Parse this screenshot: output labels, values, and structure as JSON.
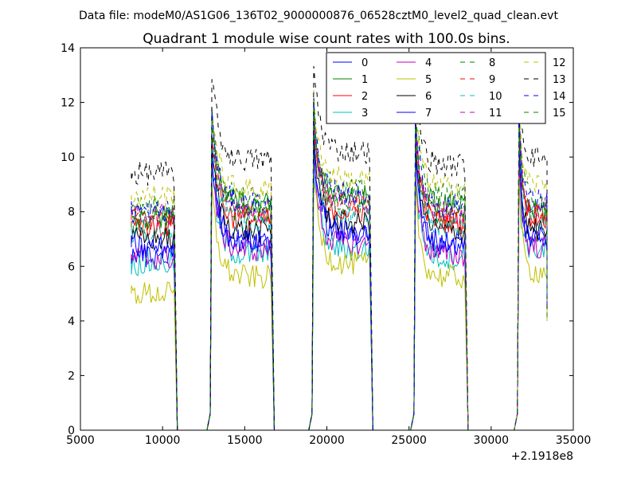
{
  "header": {
    "data_file_label": "Data file: modeM0/AS1G06_136T02_9000000876_06528cztM0_level2_quad_clean.evt"
  },
  "chart_data": {
    "type": "line",
    "title": "Quadrant 1 module wise count rates with 100.0s bins.",
    "xlabel": "",
    "ylabel": "",
    "xlim": [
      5000,
      35000
    ],
    "ylim": [
      0,
      14
    ],
    "x_ticks": [
      5000,
      10000,
      15000,
      20000,
      25000,
      30000,
      35000
    ],
    "x_tick_labels": [
      "5000",
      "10000",
      "15000",
      "20000",
      "25000",
      "30000",
      "35000"
    ],
    "y_ticks": [
      0,
      2,
      4,
      6,
      8,
      10,
      12,
      14
    ],
    "y_tick_labels": [
      "0",
      "2",
      "4",
      "6",
      "8",
      "10",
      "12",
      "14"
    ],
    "x_offset_label": "+2.1918e8",
    "grid": false,
    "legend_position": "top-right",
    "legend_columns": 4,
    "segments": [
      {
        "start": 8100,
        "end": 10700
      },
      {
        "start": 13000,
        "end": 16600
      },
      {
        "start": 19200,
        "end": 22600
      },
      {
        "start": 25400,
        "end": 28400
      },
      {
        "start": 31700,
        "end": 33400
      }
    ],
    "series": [
      {
        "name": "0",
        "color": "#0000ff",
        "dash": "solid",
        "segment_levels": [
          6.4,
          6.9,
          7.3,
          6.7,
          7.1
        ]
      },
      {
        "name": "1",
        "color": "#008000",
        "dash": "solid",
        "segment_levels": [
          7.8,
          8.3,
          8.5,
          8.2,
          8.0
        ]
      },
      {
        "name": "2",
        "color": "#ff0000",
        "dash": "solid",
        "segment_levels": [
          7.5,
          7.7,
          8.0,
          7.6,
          7.8
        ]
      },
      {
        "name": "3",
        "color": "#00bfbf",
        "dash": "solid",
        "segment_levels": [
          6.1,
          6.4,
          6.6,
          6.3,
          6.6
        ]
      },
      {
        "name": "4",
        "color": "#bf00bf",
        "dash": "solid",
        "segment_levels": [
          6.3,
          6.6,
          6.8,
          6.4,
          6.7
        ]
      },
      {
        "name": "5",
        "color": "#bfbf00",
        "dash": "solid",
        "segment_levels": [
          5.0,
          5.6,
          6.1,
          5.6,
          5.8
        ]
      },
      {
        "name": "6",
        "color": "#000000",
        "dash": "solid",
        "segment_levels": [
          7.0,
          7.3,
          7.6,
          7.3,
          7.3
        ]
      },
      {
        "name": "7",
        "color": "#0000ff",
        "dash": "solid",
        "segment_levels": [
          6.7,
          6.9,
          7.2,
          6.9,
          7.0
        ]
      },
      {
        "name": "8",
        "color": "#008000",
        "dash": "dashed",
        "segment_levels": [
          8.2,
          8.5,
          8.8,
          8.6,
          8.5
        ]
      },
      {
        "name": "9",
        "color": "#ff0000",
        "dash": "dashed",
        "segment_levels": [
          7.7,
          7.9,
          8.2,
          7.8,
          8.0
        ]
      },
      {
        "name": "10",
        "color": "#00bfbf",
        "dash": "dashed",
        "segment_levels": [
          7.3,
          7.6,
          7.9,
          7.5,
          7.7
        ]
      },
      {
        "name": "11",
        "color": "#bf00bf",
        "dash": "dashed",
        "segment_levels": [
          7.9,
          8.1,
          8.4,
          8.0,
          8.2
        ]
      },
      {
        "name": "12",
        "color": "#bfbf00",
        "dash": "dashed",
        "segment_levels": [
          8.6,
          8.8,
          9.2,
          8.9,
          9.0
        ]
      },
      {
        "name": "13",
        "color": "#000000",
        "dash": "dashed",
        "segment_levels": [
          9.4,
          9.9,
          10.2,
          9.7,
          10.0
        ]
      },
      {
        "name": "14",
        "color": "#0000ff",
        "dash": "dashed",
        "segment_levels": [
          8.0,
          8.3,
          8.6,
          8.2,
          8.4
        ]
      },
      {
        "name": "15",
        "color": "#008000",
        "dash": "dashed",
        "segment_levels": [
          7.6,
          8.0,
          8.3,
          7.9,
          8.1
        ]
      }
    ]
  }
}
